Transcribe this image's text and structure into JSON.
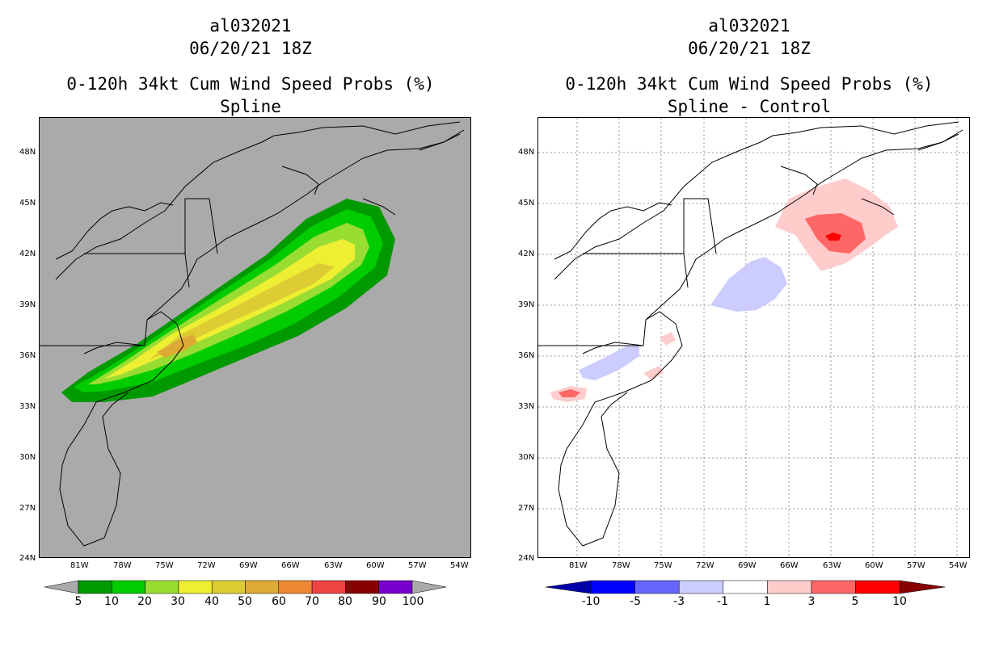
{
  "left": {
    "title": [
      "al032021",
      "06/20/21 18Z",
      "0-120h 34kt Cum Wind Speed Probs (%)",
      "Spline"
    ],
    "colorbar_labels": [
      "5",
      "10",
      "20",
      "30",
      "40",
      "50",
      "60",
      "70",
      "80",
      "90",
      "100"
    ],
    "colors": [
      "#009900",
      "#00cc00",
      "#99dd33",
      "#eeee33",
      "#ddcc33",
      "#ddaa33",
      "#ee8833",
      "#ee4444",
      "#880000",
      "#7700cc"
    ]
  },
  "right": {
    "title": [
      "al032021",
      "06/20/21 18Z",
      "0-120h 34kt Cum Wind Speed Probs (%)",
      "Spline - Control"
    ],
    "colorbar_labels": [
      "-10",
      "-5",
      "-3",
      "-1",
      "1",
      "3",
      "5",
      "10"
    ],
    "colors": [
      "#0000aa",
      "#0000ff",
      "#6666ff",
      "#ccccff",
      "#ffffff",
      "#ffcccc",
      "#ff6666",
      "#ff0000",
      "#880000"
    ]
  },
  "axes": {
    "lat_labels": [
      "48N",
      "45N",
      "42N",
      "39N",
      "36N",
      "33N",
      "30N",
      "27N",
      "24N"
    ],
    "lon_labels": [
      "81W",
      "78W",
      "75W",
      "72W",
      "69W",
      "66W",
      "63W",
      "60W",
      "57W",
      "54W"
    ]
  }
}
